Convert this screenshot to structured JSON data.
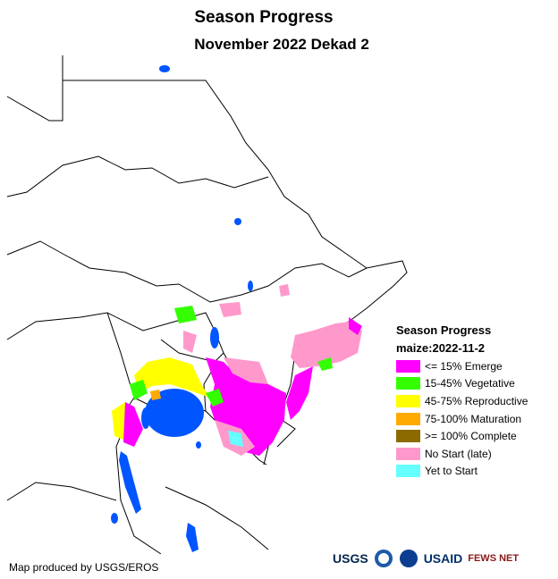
{
  "title": "Season Progress",
  "subtitle": "November 2022 Dekad 2",
  "legend": {
    "title": "Season Progress",
    "subtitle": "maize:2022-11-2",
    "items": [
      {
        "label": "<= 15% Emerge",
        "color": "#ff00ff"
      },
      {
        "label": "15-45% Vegetative",
        "color": "#33ff00"
      },
      {
        "label": "45-75% Reproductive",
        "color": "#ffff00"
      },
      {
        "label": "75-100% Maturation",
        "color": "#ffaa00"
      },
      {
        "label": ">= 100% Complete",
        "color": "#8c6a00"
      },
      {
        "label": "No Start (late)",
        "color": "#ff99cc"
      },
      {
        "label": "Yet to Start",
        "color": "#66ffff"
      }
    ]
  },
  "credit": "Map produced by USGS/EROS",
  "logos": {
    "usgs": "USGS",
    "usaid": "USAID",
    "fews": "FEWS NET"
  },
  "colors": {
    "water": "#0055ff",
    "border": "#000000"
  }
}
